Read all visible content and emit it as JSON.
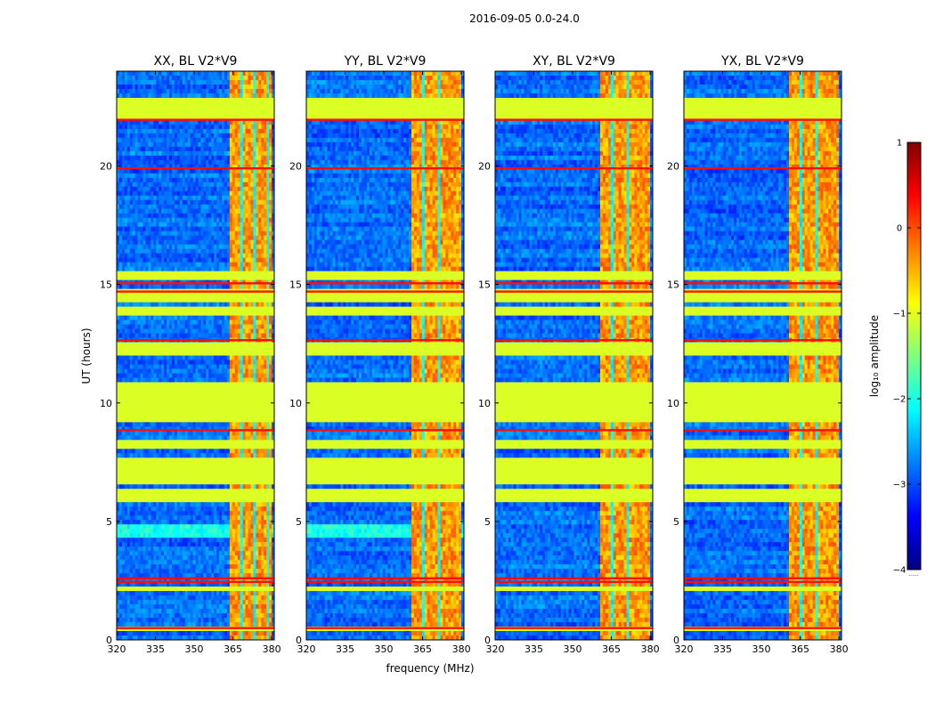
{
  "chart_data": {
    "type": "heatmap",
    "title": "2016-09-05 0.0-24.0",
    "xlabel": "frequency (MHz)",
    "ylabel": "UT (hours)",
    "xlim": [
      320,
      381
    ],
    "ylim": [
      0,
      24
    ],
    "xticks": [
      "320",
      "335",
      "350",
      "365",
      "380"
    ],
    "yticks": [
      "0",
      "5",
      "10",
      "15",
      "20"
    ],
    "panels": [
      {
        "title": "XX, BL V2*V9",
        "pol": "XX",
        "band_start_mhz": 363.7,
        "upper_cyan": true
      },
      {
        "title": "YY, BL V2*V9",
        "pol": "YY",
        "band_start_mhz": 360.5,
        "upper_cyan": true
      },
      {
        "title": "XY, BL V2*V9",
        "pol": "XY",
        "band_start_mhz": 360.5,
        "upper_cyan": false
      },
      {
        "title": "YX, BL V2*V9",
        "pol": "YX",
        "band_start_mhz": 360.5,
        "upper_cyan": false
      }
    ],
    "band_end_mhz": 380.2,
    "flagged_ut_intervals": [
      [
        0.45,
        0.52
      ],
      [
        2.15,
        2.3
      ],
      [
        5.85,
        6.3
      ],
      [
        6.5,
        7.75
      ],
      [
        8.05,
        8.5
      ],
      [
        8.75,
        8.85
      ],
      [
        9.1,
        10.95
      ],
      [
        11.1,
        11.15
      ],
      [
        12.0,
        12.55
      ],
      [
        13.75,
        14.15
      ],
      [
        14.3,
        14.4
      ],
      [
        14.5,
        14.8
      ],
      [
        15.2,
        15.5
      ],
      [
        21.9,
        22.9
      ]
    ],
    "strong_ut_rows": [
      0.5,
      2.45,
      2.6,
      8.85,
      14.7,
      15.05,
      21.95,
      12.65,
      19.9
    ],
    "colorbar": {
      "label": "log₁₀ amplitude",
      "min": -4,
      "max": 1,
      "ticks": [
        "1",
        "0",
        "−1",
        "−2",
        "−3",
        "−4"
      ],
      "extend_label": "......",
      "colors": [
        "#00007f",
        "#0000ff",
        "#007fff",
        "#00ffff",
        "#7fff7f",
        "#ffff00",
        "#ff7f00",
        "#ff0000",
        "#7f0000"
      ]
    }
  }
}
